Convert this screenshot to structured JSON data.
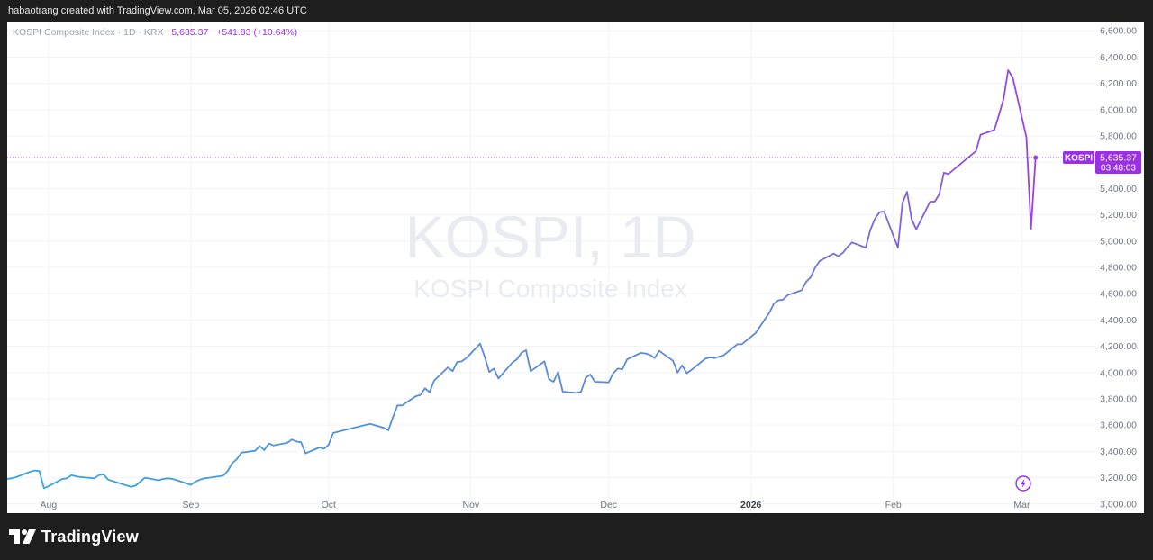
{
  "header": {
    "attribution": "habaotrang created with TradingView.com, Mar 05, 2026 02:46 UTC"
  },
  "legend": {
    "symbol": "KOSPI Composite Index · 1D · KRX",
    "price": "5,635.37",
    "change": "+541.83 (+10.64%)"
  },
  "watermark": {
    "line1": "KOSPI, 1D",
    "line2": "KOSPI Composite Index"
  },
  "price_label": {
    "tag": "KOSPI",
    "value": "5,635.37",
    "countdown": "03:48:03"
  },
  "footer": {
    "brand": "TradingView"
  },
  "icons": {
    "logo": "tradingview-logo-icon",
    "lightning": "lightning-icon"
  },
  "colors": {
    "line_start": "#35a7dc",
    "line_mid": "#5b8ad8",
    "line_end": "#9b43e0",
    "label_bg": "#9b2fe3",
    "legend_value": "#9b2fe3",
    "grid": "#f0f3fa"
  },
  "chart_data": {
    "type": "line",
    "title": "KOSPI Composite Index · 1D · KRX",
    "x_ticks": [
      "Aug",
      "Sep",
      "Oct",
      "Nov",
      "Dec",
      "2026",
      "Feb",
      "Mar"
    ],
    "y_ticks": [
      "3,000.00",
      "3,200.00",
      "3,400.00",
      "3,600.00",
      "3,800.00",
      "4,000.00",
      "4,200.00",
      "4,400.00",
      "4,600.00",
      "4,800.00",
      "5,000.00",
      "5,200.00",
      "5,400.00",
      "5,600.00",
      "5,800.00",
      "6,000.00",
      "6,200.00",
      "6,400.00",
      "6,600.00"
    ],
    "ylim": [
      2930,
      6670
    ],
    "x_start": "2025-07-23",
    "x_end": "2026-03-17",
    "current_value": 5635.37,
    "grid": true,
    "series": [
      {
        "points": [
          [
            "2025-07-23",
            3190
          ],
          [
            "2025-07-24",
            3195
          ],
          [
            "2025-07-25",
            3205
          ],
          [
            "2025-07-28",
            3245
          ],
          [
            "2025-07-29",
            3255
          ],
          [
            "2025-07-30",
            3250
          ],
          [
            "2025-07-31",
            3120
          ],
          [
            "2025-08-01",
            3135
          ],
          [
            "2025-08-04",
            3190
          ],
          [
            "2025-08-05",
            3195
          ],
          [
            "2025-08-06",
            3220
          ],
          [
            "2025-08-07",
            3210
          ],
          [
            "2025-08-08",
            3205
          ],
          [
            "2025-08-11",
            3195
          ],
          [
            "2025-08-12",
            3220
          ],
          [
            "2025-08-13",
            3225
          ],
          [
            "2025-08-14",
            3185
          ],
          [
            "2025-08-18",
            3140
          ],
          [
            "2025-08-19",
            3130
          ],
          [
            "2025-08-20",
            3140
          ],
          [
            "2025-08-21",
            3170
          ],
          [
            "2025-08-22",
            3200
          ],
          [
            "2025-08-25",
            3180
          ],
          [
            "2025-08-26",
            3190
          ],
          [
            "2025-08-27",
            3195
          ],
          [
            "2025-08-28",
            3190
          ],
          [
            "2025-08-29",
            3180
          ],
          [
            "2025-09-01",
            3145
          ],
          [
            "2025-09-02",
            3170
          ],
          [
            "2025-09-03",
            3185
          ],
          [
            "2025-09-04",
            3195
          ],
          [
            "2025-09-05",
            3200
          ],
          [
            "2025-09-08",
            3215
          ],
          [
            "2025-09-09",
            3250
          ],
          [
            "2025-09-10",
            3310
          ],
          [
            "2025-09-11",
            3340
          ],
          [
            "2025-09-12",
            3390
          ],
          [
            "2025-09-15",
            3405
          ],
          [
            "2025-09-16",
            3440
          ],
          [
            "2025-09-17",
            3410
          ],
          [
            "2025-09-18",
            3460
          ],
          [
            "2025-09-19",
            3445
          ],
          [
            "2025-09-22",
            3465
          ],
          [
            "2025-09-23",
            3490
          ],
          [
            "2025-09-24",
            3475
          ],
          [
            "2025-09-25",
            3470
          ],
          [
            "2025-09-26",
            3385
          ],
          [
            "2025-09-29",
            3430
          ],
          [
            "2025-09-30",
            3420
          ],
          [
            "2025-10-01",
            3450
          ],
          [
            "2025-10-02",
            3540
          ],
          [
            "2025-10-10",
            3610
          ],
          [
            "2025-10-13",
            3580
          ],
          [
            "2025-10-14",
            3560
          ],
          [
            "2025-10-15",
            3660
          ],
          [
            "2025-10-16",
            3750
          ],
          [
            "2025-10-17",
            3750
          ],
          [
            "2025-10-20",
            3820
          ],
          [
            "2025-10-21",
            3830
          ],
          [
            "2025-10-22",
            3880
          ],
          [
            "2025-10-23",
            3850
          ],
          [
            "2025-10-24",
            3940
          ],
          [
            "2025-10-27",
            4040
          ],
          [
            "2025-10-28",
            4010
          ],
          [
            "2025-10-29",
            4080
          ],
          [
            "2025-10-30",
            4085
          ],
          [
            "2025-10-31",
            4110
          ],
          [
            "2025-11-03",
            4220
          ],
          [
            "2025-11-04",
            4120
          ],
          [
            "2025-11-05",
            4005
          ],
          [
            "2025-11-06",
            4030
          ],
          [
            "2025-11-07",
            3955
          ],
          [
            "2025-11-10",
            4075
          ],
          [
            "2025-11-11",
            4100
          ],
          [
            "2025-11-12",
            4150
          ],
          [
            "2025-11-13",
            4170
          ],
          [
            "2025-11-14",
            4010
          ],
          [
            "2025-11-17",
            4085
          ],
          [
            "2025-11-18",
            3950
          ],
          [
            "2025-11-19",
            3930
          ],
          [
            "2025-11-20",
            4005
          ],
          [
            "2025-11-21",
            3855
          ],
          [
            "2025-11-24",
            3845
          ],
          [
            "2025-11-25",
            3855
          ],
          [
            "2025-11-26",
            3960
          ],
          [
            "2025-11-27",
            3985
          ],
          [
            "2025-11-28",
            3930
          ],
          [
            "2025-12-01",
            3925
          ],
          [
            "2025-12-02",
            3995
          ],
          [
            "2025-12-03",
            4030
          ],
          [
            "2025-12-04",
            4025
          ],
          [
            "2025-12-05",
            4100
          ],
          [
            "2025-12-08",
            4150
          ],
          [
            "2025-12-09",
            4145
          ],
          [
            "2025-12-10",
            4135
          ],
          [
            "2025-12-11",
            4110
          ],
          [
            "2025-12-12",
            4165
          ],
          [
            "2025-12-15",
            4090
          ],
          [
            "2025-12-16",
            4000
          ],
          [
            "2025-12-17",
            4055
          ],
          [
            "2025-12-18",
            3995
          ],
          [
            "2025-12-19",
            4020
          ],
          [
            "2025-12-22",
            4105
          ],
          [
            "2025-12-23",
            4115
          ],
          [
            "2025-12-24",
            4110
          ],
          [
            "2025-12-26",
            4130
          ],
          [
            "2025-12-29",
            4215
          ],
          [
            "2025-12-30",
            4215
          ],
          [
            "2026-01-02",
            4300
          ],
          [
            "2026-01-05",
            4455
          ],
          [
            "2026-01-06",
            4525
          ],
          [
            "2026-01-07",
            4550
          ],
          [
            "2026-01-08",
            4555
          ],
          [
            "2026-01-09",
            4590
          ],
          [
            "2026-01-12",
            4625
          ],
          [
            "2026-01-13",
            4690
          ],
          [
            "2026-01-14",
            4725
          ],
          [
            "2026-01-15",
            4800
          ],
          [
            "2026-01-16",
            4850
          ],
          [
            "2026-01-19",
            4905
          ],
          [
            "2026-01-20",
            4885
          ],
          [
            "2026-01-21",
            4910
          ],
          [
            "2026-01-22",
            4955
          ],
          [
            "2026-01-23",
            4990
          ],
          [
            "2026-01-26",
            4950
          ],
          [
            "2026-01-27",
            5085
          ],
          [
            "2026-01-28",
            5170
          ],
          [
            "2026-01-29",
            5220
          ],
          [
            "2026-01-30",
            5225
          ],
          [
            "2026-02-02",
            4950
          ],
          [
            "2026-02-03",
            5290
          ],
          [
            "2026-02-04",
            5375
          ],
          [
            "2026-02-05",
            5165
          ],
          [
            "2026-02-06",
            5090
          ],
          [
            "2026-02-09",
            5300
          ],
          [
            "2026-02-10",
            5300
          ],
          [
            "2026-02-11",
            5355
          ],
          [
            "2026-02-12",
            5520
          ],
          [
            "2026-02-13",
            5510
          ],
          [
            "2026-02-19",
            5685
          ],
          [
            "2026-02-20",
            5810
          ],
          [
            "2026-02-23",
            5845
          ],
          [
            "2026-02-24",
            5960
          ],
          [
            "2026-02-25",
            6080
          ],
          [
            "2026-02-26",
            6300
          ],
          [
            "2026-02-27",
            6245
          ],
          [
            "2026-03-02",
            5790
          ],
          [
            "2026-03-03",
            5093
          ],
          [
            "2026-03-04",
            5635.37
          ]
        ]
      }
    ]
  }
}
